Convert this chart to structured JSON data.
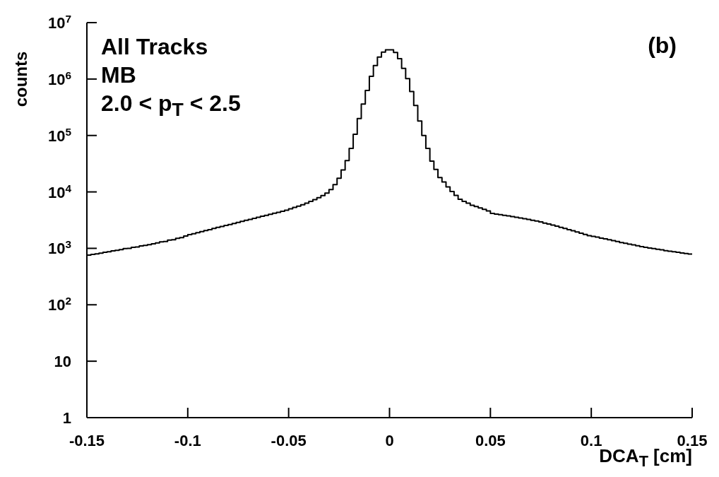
{
  "chart_data": {
    "type": "histogram",
    "xlabel": "DCA$_{T}$ [cm]",
    "ylabel": "counts",
    "annotations": [
      "All Tracks",
      "MB",
      "2.0 < p$_{T}$ < 2.5",
      "(b)"
    ],
    "color": "#000000",
    "log": "y",
    "grid": false,
    "legend": false,
    "xlim": [
      -0.15,
      0.15
    ],
    "xticks": [
      -0.15,
      -0.1,
      -0.05,
      0,
      0.05,
      0.1,
      0.15
    ],
    "ylim": [
      1,
      10000000
    ],
    "yticks": [
      1,
      10,
      {
        "value": 100,
        "label": "10$^{2}$"
      },
      {
        "value": 1000,
        "label": "10$^{3}$"
      },
      {
        "value": 10000,
        "label": "10$^{4}$"
      },
      {
        "value": 100000,
        "label": "10$^{5}$"
      },
      {
        "value": 1000000,
        "label": "10$^{6}$"
      },
      {
        "value": 10000000,
        "label": "10$^{7}$"
      }
    ],
    "bins": [
      -0.15,
      -0.148,
      -0.146,
      -0.144,
      -0.142,
      -0.14,
      -0.138,
      -0.136,
      -0.134,
      -0.132,
      -0.13,
      -0.128,
      -0.126,
      -0.124,
      -0.122,
      -0.12,
      -0.118,
      -0.116,
      -0.114,
      -0.112,
      -0.11,
      -0.108,
      -0.106,
      -0.104,
      -0.102,
      -0.1,
      -0.098,
      -0.096,
      -0.094,
      -0.092,
      -0.09,
      -0.088,
      -0.086,
      -0.084,
      -0.082,
      -0.08,
      -0.078,
      -0.076,
      -0.074,
      -0.072,
      -0.07,
      -0.068,
      -0.066,
      -0.064,
      -0.062,
      -0.06,
      -0.058,
      -0.056,
      -0.054,
      -0.052,
      -0.05,
      -0.048,
      -0.046,
      -0.044,
      -0.042,
      -0.04,
      -0.038,
      -0.036,
      -0.034,
      -0.032,
      -0.03,
      -0.028,
      -0.026,
      -0.024,
      -0.022,
      -0.02,
      -0.018,
      -0.016,
      -0.014,
      -0.012,
      -0.01,
      -0.008,
      -0.006,
      -0.004,
      -0.002,
      0,
      0.002,
      0.004,
      0.006,
      0.008,
      0.01,
      0.012,
      0.014,
      0.016,
      0.018,
      0.02,
      0.022,
      0.024,
      0.026,
      0.028,
      0.03,
      0.032,
      0.034,
      0.036,
      0.038,
      0.04,
      0.042,
      0.044,
      0.046,
      0.048,
      0.05,
      0.052,
      0.054,
      0.056,
      0.058,
      0.06,
      0.062,
      0.064,
      0.066,
      0.068,
      0.07,
      0.072,
      0.074,
      0.076,
      0.078,
      0.08,
      0.082,
      0.084,
      0.086,
      0.088,
      0.09,
      0.092,
      0.094,
      0.096,
      0.098,
      0.1,
      0.102,
      0.104,
      0.106,
      0.108,
      0.11,
      0.112,
      0.114,
      0.116,
      0.118,
      0.12,
      0.122,
      0.124,
      0.126,
      0.128,
      0.13,
      0.132,
      0.134,
      0.136,
      0.138,
      0.14,
      0.142,
      0.144,
      0.146,
      0.148,
      0.15
    ],
    "values": [
      760,
      780,
      800,
      820,
      850,
      870,
      900,
      920,
      950,
      990,
      1000,
      1040,
      1060,
      1100,
      1130,
      1160,
      1200,
      1250,
      1300,
      1320,
      1400,
      1420,
      1500,
      1550,
      1650,
      1750,
      1820,
      1900,
      1980,
      2070,
      2150,
      2250,
      2350,
      2440,
      2550,
      2650,
      2760,
      2880,
      3000,
      3130,
      3250,
      3400,
      3550,
      3700,
      3850,
      4000,
      4200,
      4350,
      4550,
      4750,
      5000,
      5300,
      5600,
      5900,
      6300,
      6800,
      7300,
      7900,
      8600,
      9500,
      11000,
      13500,
      17500,
      24500,
      36000,
      59000,
      105000,
      200000,
      360000,
      630000,
      1120000,
      1740000,
      2450000,
      3000000,
      3300000,
      3300000,
      2950000,
      2290000,
      1550000,
      1020000,
      600000,
      340000,
      180000,
      100000,
      59000,
      35000,
      25000,
      18000,
      15000,
      12300,
      10200,
      8700,
      7400,
      6800,
      6300,
      5800,
      5500,
      5200,
      4900,
      4600,
      4150,
      4050,
      3950,
      3850,
      3750,
      3650,
      3550,
      3450,
      3350,
      3250,
      3150,
      3050,
      2950,
      2800,
      2700,
      2580,
      2470,
      2350,
      2250,
      2150,
      2050,
      1950,
      1850,
      1760,
      1680,
      1630,
      1580,
      1520,
      1470,
      1420,
      1370,
      1320,
      1270,
      1230,
      1190,
      1150,
      1110,
      1070,
      1040,
      1010,
      990,
      960,
      940,
      910,
      890,
      870,
      850,
      830,
      810,
      790
    ]
  }
}
